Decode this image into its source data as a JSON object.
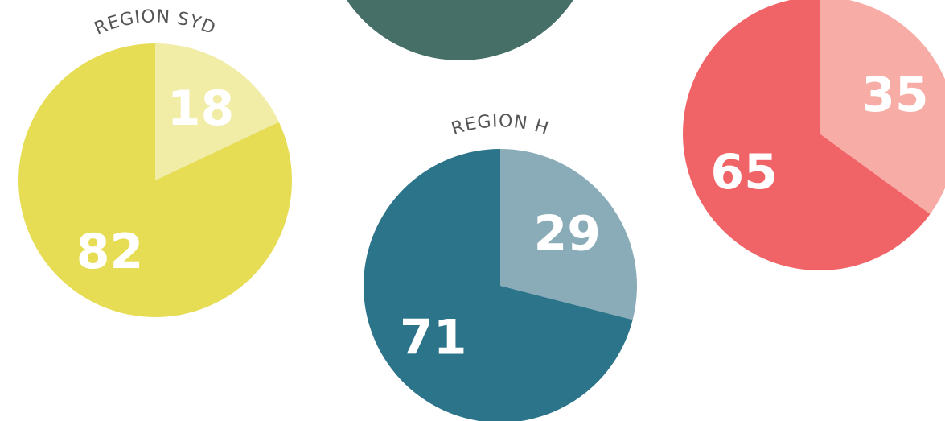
{
  "chart_data": [
    {
      "type": "pie",
      "title": "REGION SYD",
      "values": [
        18,
        82
      ],
      "colors": [
        "#f1eca6",
        "#e6dd55"
      ]
    },
    {
      "type": "pie",
      "title": "REGION H",
      "values": [
        29,
        71
      ],
      "colors": [
        "#8aabb8",
        "#2b7489"
      ]
    },
    {
      "type": "pie",
      "values": [
        35,
        65
      ],
      "colors": [
        "#f7aca6",
        "#f06468"
      ]
    }
  ]
}
